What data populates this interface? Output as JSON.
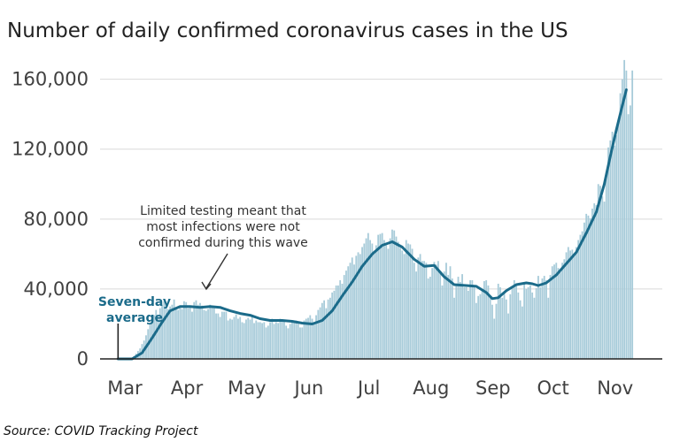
{
  "chart_data": {
    "type": "bar",
    "title": "Number of daily confirmed coronavirus cases in the US",
    "xlabel": "",
    "ylabel": "",
    "ylim": [
      0,
      175000
    ],
    "y_ticks": [
      0,
      40000,
      80000,
      120000,
      160000
    ],
    "y_tick_labels": [
      "0",
      "40,000",
      "80,000",
      "120,000",
      "160,000"
    ],
    "x_ticks": [
      {
        "label": "Mar",
        "date": "2020-03-01"
      },
      {
        "label": "Apr",
        "date": "2020-04-01"
      },
      {
        "label": "May",
        "date": "2020-05-01"
      },
      {
        "label": "Jun",
        "date": "2020-06-01"
      },
      {
        "label": "Jul",
        "date": "2020-07-01"
      },
      {
        "label": "Aug",
        "date": "2020-08-01"
      },
      {
        "label": "Sep",
        "date": "2020-09-01"
      },
      {
        "label": "Oct",
        "date": "2020-10-01"
      },
      {
        "label": "Nov",
        "date": "2020-11-01"
      }
    ],
    "grid": true,
    "series": [
      {
        "name": "Daily confirmed cases",
        "kind": "bars",
        "color": "#a7cbd9",
        "start_date": "2020-03-01",
        "values": [
          0,
          0,
          0,
          0,
          0,
          0,
          0,
          0,
          0,
          0,
          0,
          0,
          0,
          0,
          0,
          0,
          700,
          1500,
          3000,
          4500,
          6000,
          8500,
          10500,
          13500,
          17000,
          20000,
          22000,
          25000,
          28000,
          25000,
          29000,
          31000,
          33000,
          32000,
          28500,
          30000,
          31000,
          34000,
          29500,
          28000,
          30000,
          28500,
          33000,
          32500,
          29000,
          29500,
          27000,
          32500,
          33500,
          31000,
          32000,
          30500,
          28000,
          27500,
          28500,
          31000,
          29500,
          29000,
          26000,
          26000,
          24000,
          27000,
          27000,
          27000,
          22000,
          23000,
          22500,
          24000,
          25500,
          23000,
          24000,
          21000,
          20500,
          22500,
          23500,
          22500,
          25000,
          20500,
          22000,
          21000,
          21000,
          20500,
          21000,
          18000,
          19000,
          21000,
          23000,
          20000,
          21000,
          20500,
          23000,
          22000,
          22000,
          19000,
          17500,
          20000,
          21000,
          21500,
          22000,
          20000,
          18000,
          18000,
          22000,
          23000,
          23500,
          25000,
          23000,
          21000,
          25000,
          28000,
          29500,
          32000,
          33500,
          29000,
          34000,
          35000,
          38000,
          39000,
          42000,
          42000,
          45000,
          43000,
          48000,
          50500,
          53000,
          55000,
          58000,
          54000,
          59000,
          61000,
          60000,
          64000,
          66000,
          69000,
          72000,
          68000,
          66000,
          61000,
          65000,
          71000,
          71500,
          72000,
          68000,
          65000,
          63000,
          69000,
          74000,
          73500,
          70000,
          67000,
          63500,
          62000,
          60000,
          68000,
          66000,
          65500,
          63000,
          55000,
          50000,
          58000,
          60000,
          56000,
          56000,
          55000,
          46000,
          47000,
          52000,
          55500,
          54000,
          56000,
          50000,
          42000,
          50000,
          55000,
          48000,
          53000,
          46000,
          35000,
          42500,
          47000,
          44000,
          48500,
          41000,
          41000,
          39000,
          45000,
          45000,
          42000,
          32000,
          36000,
          37000,
          40000,
          44500,
          45000,
          42000,
          36000,
          31000,
          23000,
          31500,
          43000,
          41000,
          35000,
          38000,
          34000,
          26000,
          37000,
          40500,
          45000,
          42000,
          38000,
          33500,
          30000,
          43000,
          40000,
          41000,
          42000,
          38000,
          35000,
          40500,
          47500,
          41000,
          46000,
          47500,
          45000,
          35000,
          48000,
          53000,
          54000,
          55000,
          52000,
          49500,
          55000,
          57000,
          61000,
          64000,
          62000,
          62500,
          60000,
          64000,
          68000,
          71000,
          73000,
          78000,
          83000,
          82000,
          80500,
          86000,
          89000,
          88000,
          100000,
          99000,
          93000,
          90000,
          107000,
          121000,
          125000,
          130000,
          122000,
          128000,
          137000,
          152000,
          160000,
          171000,
          165000,
          140000,
          145000,
          165000
        ]
      },
      {
        "name": "Seven-day average",
        "kind": "line",
        "color": "#1b6b8a",
        "points": [
          [
            "2020-03-10",
            0
          ],
          [
            "2020-03-17",
            0
          ],
          [
            "2020-03-22",
            3500
          ],
          [
            "2020-03-27",
            12000
          ],
          [
            "2020-04-01",
            21000
          ],
          [
            "2020-04-05",
            27500
          ],
          [
            "2020-04-10",
            30000
          ],
          [
            "2020-04-15",
            30000
          ],
          [
            "2020-04-20",
            29500
          ],
          [
            "2020-04-25",
            30000
          ],
          [
            "2020-04-30",
            29500
          ],
          [
            "2020-05-05",
            27500
          ],
          [
            "2020-05-10",
            26000
          ],
          [
            "2020-05-15",
            25000
          ],
          [
            "2020-05-20",
            23000
          ],
          [
            "2020-05-25",
            22000
          ],
          [
            "2020-05-31",
            22000
          ],
          [
            "2020-06-05",
            21500
          ],
          [
            "2020-06-10",
            20500
          ],
          [
            "2020-06-15",
            20000
          ],
          [
            "2020-06-20",
            22000
          ],
          [
            "2020-06-25",
            27500
          ],
          [
            "2020-06-30",
            36000
          ],
          [
            "2020-07-05",
            44000
          ],
          [
            "2020-07-10",
            53000
          ],
          [
            "2020-07-15",
            60000
          ],
          [
            "2020-07-20",
            65000
          ],
          [
            "2020-07-25",
            67000
          ],
          [
            "2020-07-30",
            64000
          ],
          [
            "2020-08-05",
            57000
          ],
          [
            "2020-08-10",
            53000
          ],
          [
            "2020-08-15",
            53500
          ],
          [
            "2020-08-20",
            47000
          ],
          [
            "2020-08-25",
            42500
          ],
          [
            "2020-08-31",
            42000
          ],
          [
            "2020-09-05",
            41500
          ],
          [
            "2020-09-10",
            38000
          ],
          [
            "2020-09-13",
            34500
          ],
          [
            "2020-09-16",
            35000
          ],
          [
            "2020-09-20",
            39000
          ],
          [
            "2020-09-25",
            42500
          ],
          [
            "2020-09-30",
            43500
          ],
          [
            "2020-10-03",
            43000
          ],
          [
            "2020-10-06",
            42000
          ],
          [
            "2020-10-10",
            43500
          ],
          [
            "2020-10-15",
            48000
          ],
          [
            "2020-10-20",
            54500
          ],
          [
            "2020-10-25",
            61000
          ],
          [
            "2020-10-30",
            72000
          ],
          [
            "2020-11-04",
            84000
          ],
          [
            "2020-11-08",
            100000
          ],
          [
            "2020-11-11",
            116000
          ],
          [
            "2020-11-14",
            131000
          ],
          [
            "2020-11-17",
            145000
          ],
          [
            "2020-11-19",
            154000
          ]
        ]
      }
    ],
    "annotations": [
      {
        "text_lines": [
          "Limited testing meant that",
          "most infections were not",
          "confirmed during this wave"
        ],
        "points_to": "2020-04-10"
      },
      {
        "text_lines": [
          "Seven-day",
          "average"
        ],
        "color": "#1b6b8a",
        "points_to": "2020-03-10"
      }
    ],
    "source": "Source: COVID Tracking Project"
  }
}
